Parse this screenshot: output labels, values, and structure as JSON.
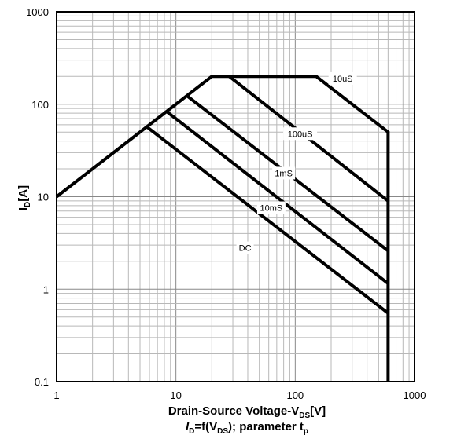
{
  "chart_data": {
    "type": "line",
    "x_scale": "log",
    "y_scale": "log",
    "xlim": [
      1,
      1000
    ],
    "ylim": [
      0.1,
      1000
    ],
    "grid": true,
    "legend": "none",
    "x_ticks": [
      "1",
      "10",
      "100",
      "1000"
    ],
    "y_ticks": [
      "0.1",
      "1",
      "10",
      "100",
      "1000"
    ],
    "xlabel": {
      "main": "Drain-Source Voltage-V",
      "sub": "DS",
      "unit": "[V]"
    },
    "subtitle": {
      "i": "I",
      "i_sub": "D",
      "mid": "=f(V",
      "v_sub": "DS",
      "tail": "); parameter t",
      "t_sub": "p"
    },
    "ylabel": {
      "main": "I",
      "sub": "D",
      "unit": "[A]"
    },
    "series": [
      {
        "name": "10uS",
        "points": [
          [
            1,
            10
          ],
          [
            20,
            200
          ],
          [
            150,
            200
          ],
          [
            600,
            50
          ],
          [
            600,
            0.1
          ]
        ]
      },
      {
        "name": "100uS",
        "points": [
          [
            28,
            200
          ],
          [
            600,
            9
          ]
        ]
      },
      {
        "name": "1mS",
        "points": [
          [
            12.5,
            122
          ],
          [
            600,
            2.6
          ]
        ]
      },
      {
        "name": "10mS",
        "points": [
          [
            8.5,
            82
          ],
          [
            600,
            1.15
          ]
        ]
      },
      {
        "name": "DC",
        "points": [
          [
            5.8,
            56
          ],
          [
            600,
            0.55
          ]
        ]
      }
    ],
    "annotations": [
      {
        "text": "10uS",
        "x": 250,
        "y": 190
      },
      {
        "text": "100uS",
        "x": 110,
        "y": 48
      },
      {
        "text": "1mS",
        "x": 80,
        "y": 18
      },
      {
        "text": "10mS",
        "x": 63,
        "y": 7.6
      },
      {
        "text": "DC",
        "x": 38,
        "y": 2.8
      }
    ]
  }
}
